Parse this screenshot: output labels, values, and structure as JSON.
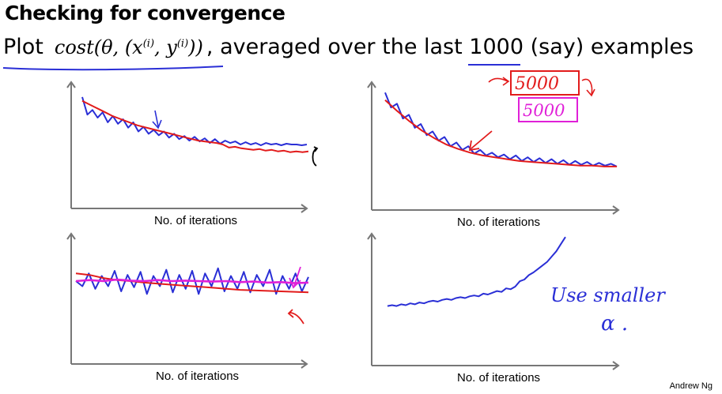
{
  "page": {
    "title": "Checking for convergence",
    "subtitle_prefix": "Plot",
    "subtitle_math": "cost(θ, (x",
    "subtitle_sup1": "(i)",
    "subtitle_mid": ", y",
    "subtitle_sup2": "(i)",
    "subtitle_math_end": "))",
    "subtitle_suffix": ", averaged over the last ",
    "subtitle_number": "1000",
    "subtitle_end": " (say) examples",
    "footer": "Andrew Ng",
    "colors": {
      "blue": "#2a2fd6",
      "red": "#e21b1b",
      "magenta": "#e020d8",
      "axis": "#777777"
    }
  },
  "annotations": {
    "red_box_text": "5000",
    "magenta_box_text": "5000",
    "handwritten_note_line1": "Use smaller",
    "handwritten_note_line2": "α ."
  },
  "chart_data": [
    {
      "type": "line",
      "xlabel": "No. of iterations",
      "ylabel": "",
      "series": [
        {
          "color": "blue",
          "values": [
            0.95,
            0.72,
            0.78,
            0.68,
            0.75,
            0.62,
            0.7,
            0.6,
            0.66,
            0.55,
            0.62,
            0.5,
            0.56,
            0.47,
            0.52,
            0.45,
            0.5,
            0.42,
            0.47,
            0.4,
            0.44,
            0.38,
            0.43,
            0.37,
            0.41,
            0.35,
            0.4,
            0.34,
            0.38,
            0.35,
            0.37,
            0.33,
            0.36,
            0.33,
            0.35,
            0.32,
            0.35,
            0.33,
            0.34,
            0.32,
            0.34,
            0.33,
            0.33,
            0.32,
            0.33
          ]
        },
        {
          "color": "red",
          "values": [
            0.9,
            0.86,
            0.82,
            0.78,
            0.74,
            0.7,
            0.67,
            0.64,
            0.61,
            0.58,
            0.56,
            0.54,
            0.52,
            0.5,
            0.48,
            0.46,
            0.44,
            0.42,
            0.4,
            0.38,
            0.37,
            0.36,
            0.35,
            0.33,
            0.29,
            0.3,
            0.28,
            0.27,
            0.26,
            0.27,
            0.25,
            0.26,
            0.24,
            0.25,
            0.23,
            0.24,
            0.23,
            0.24
          ]
        }
      ]
    },
    {
      "type": "line",
      "xlabel": "No. of iterations",
      "ylabel": "",
      "series": [
        {
          "color": "blue",
          "values": [
            0.98,
            0.82,
            0.86,
            0.7,
            0.74,
            0.6,
            0.64,
            0.52,
            0.56,
            0.46,
            0.5,
            0.4,
            0.44,
            0.36,
            0.4,
            0.32,
            0.36,
            0.3,
            0.33,
            0.28,
            0.31,
            0.26,
            0.3,
            0.24,
            0.28,
            0.23,
            0.27,
            0.22,
            0.26,
            0.21,
            0.25,
            0.2,
            0.24,
            0.2,
            0.23,
            0.19,
            0.22,
            0.19,
            0.21,
            0.18
          ]
        },
        {
          "color": "red",
          "values": [
            0.9,
            0.78,
            0.67,
            0.57,
            0.49,
            0.42,
            0.37,
            0.33,
            0.3,
            0.28,
            0.26,
            0.24,
            0.23,
            0.22,
            0.21,
            0.2,
            0.19,
            0.19,
            0.18,
            0.18
          ]
        }
      ]
    },
    {
      "type": "line",
      "xlabel": "No. of iterations",
      "ylabel": "",
      "series": [
        {
          "color": "blue",
          "values": [
            0.6,
            0.5,
            0.75,
            0.45,
            0.7,
            0.5,
            0.8,
            0.4,
            0.72,
            0.48,
            0.78,
            0.35,
            0.7,
            0.5,
            0.82,
            0.38,
            0.72,
            0.45,
            0.8,
            0.35,
            0.75,
            0.5,
            0.85,
            0.4,
            0.7,
            0.45,
            0.78,
            0.38,
            0.72,
            0.5,
            0.82,
            0.35,
            0.7,
            0.45,
            0.75,
            0.4,
            0.68
          ]
        },
        {
          "color": "red",
          "values": [
            0.75,
            0.72,
            0.66,
            0.62,
            0.6,
            0.57,
            0.55,
            0.53,
            0.51,
            0.49,
            0.47,
            0.45,
            0.43,
            0.42,
            0.41,
            0.4,
            0.39,
            0.38
          ]
        },
        {
          "color": "magenta",
          "values": [
            0.6,
            0.62,
            0.6,
            0.63,
            0.61,
            0.6,
            0.62,
            0.6,
            0.61,
            0.6,
            0.59,
            0.6,
            0.58,
            0.59,
            0.57,
            0.58,
            0.56,
            0.57
          ]
        }
      ]
    },
    {
      "type": "line",
      "xlabel": "No. of iterations",
      "ylabel": "",
      "series": [
        {
          "color": "blue",
          "values": [
            0.2,
            0.21,
            0.2,
            0.22,
            0.21,
            0.23,
            0.22,
            0.24,
            0.23,
            0.25,
            0.26,
            0.25,
            0.27,
            0.28,
            0.27,
            0.29,
            0.3,
            0.29,
            0.31,
            0.32,
            0.31,
            0.34,
            0.33,
            0.35,
            0.37,
            0.36,
            0.4,
            0.39,
            0.42,
            0.48,
            0.5,
            0.55,
            0.58,
            0.62,
            0.66,
            0.7,
            0.76,
            0.82,
            0.9,
            0.98
          ]
        }
      ]
    }
  ]
}
